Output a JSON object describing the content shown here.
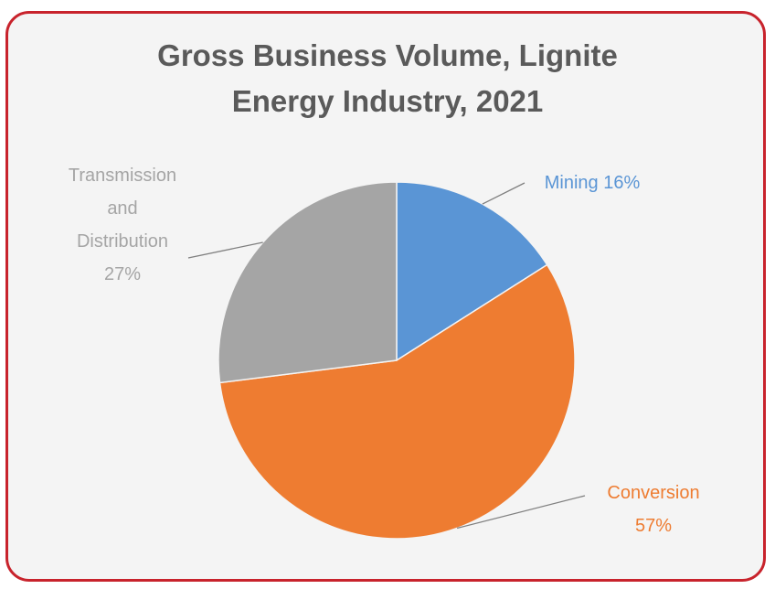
{
  "chart_data": {
    "type": "pie",
    "title": [
      "Gross Business Volume, Lignite",
      "Energy Industry, 2021"
    ],
    "slices": [
      {
        "label": "Mining",
        "value": 16,
        "display": "16%",
        "color": "#5a95d5"
      },
      {
        "label": "Conversion",
        "value": 57,
        "display": "57%",
        "color": "#ee7c31"
      },
      {
        "label": "Transmission and Distribution",
        "value": 27,
        "display": "27%",
        "color": "#a5a5a5"
      }
    ],
    "labels": {
      "mining": [
        "Mining 16%"
      ],
      "conversion": [
        "Conversion",
        "57%"
      ],
      "transmission": [
        "Transmission",
        "and",
        "Distribution",
        "27%"
      ]
    }
  }
}
